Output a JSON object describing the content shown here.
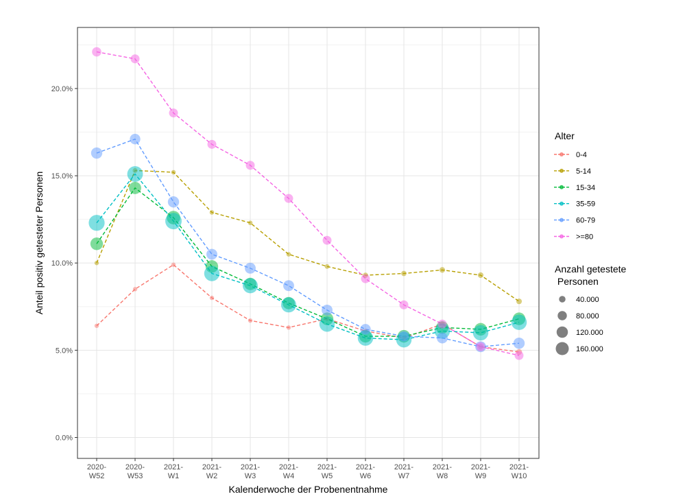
{
  "chart_data": {
    "type": "line",
    "title": "",
    "xlabel": "Kalenderwoche der Probenentnahme",
    "ylabel": "Anteil positiv getesteter Personen",
    "categories": [
      [
        "2020-",
        "W52"
      ],
      [
        "2020-",
        "W53"
      ],
      [
        "2021-",
        "W1"
      ],
      [
        "2021-",
        "W2"
      ],
      [
        "2021-",
        "W3"
      ],
      [
        "2021-",
        "W4"
      ],
      [
        "2021-",
        "W5"
      ],
      [
        "2021-",
        "W6"
      ],
      [
        "2021-",
        "W7"
      ],
      [
        "2021-",
        "W8"
      ],
      [
        "2021-",
        "W9"
      ],
      [
        "2021-",
        "W10"
      ]
    ],
    "ylim": [
      -1.2,
      23.5
    ],
    "yticks": [
      0,
      5,
      10,
      15,
      20
    ],
    "ytick_labels": [
      "0.0%",
      "5.0%",
      "10.0%",
      "15.0%",
      "20.0%"
    ],
    "grid": true,
    "legend_color": {
      "title": "Alter",
      "position": "right"
    },
    "legend_size": {
      "title_line1": "Anzahl getestete",
      "title_line2": " Personen",
      "entries": [
        {
          "label": "40.000",
          "value": 40000
        },
        {
          "label": "80.000",
          "value": 80000
        },
        {
          "label": "120.000",
          "value": 120000
        },
        {
          "label": "160.000",
          "value": 160000
        }
      ]
    },
    "series": [
      {
        "name": "0-4",
        "color": "#F8766D",
        "values": [
          6.4,
          8.5,
          9.9,
          8.0,
          6.7,
          6.3,
          6.8,
          6.1,
          5.7,
          6.5,
          5.2,
          4.9
        ],
        "counts": [
          4000,
          6000,
          5000,
          5000,
          5000,
          5000,
          7000,
          9000,
          11000,
          16000,
          18000,
          22000
        ]
      },
      {
        "name": "5-14",
        "color": "#B79F00",
        "values": [
          10.0,
          15.3,
          15.2,
          12.9,
          12.3,
          10.5,
          9.8,
          9.3,
          9.4,
          9.6,
          9.3,
          7.8
        ],
        "counts": [
          10000,
          15000,
          13000,
          13000,
          13000,
          13000,
          14000,
          17000,
          18000,
          20000,
          20000,
          20000
        ]
      },
      {
        "name": "15-34",
        "color": "#00BA38",
        "values": [
          11.1,
          14.3,
          12.6,
          9.8,
          8.8,
          7.7,
          6.8,
          5.8,
          5.8,
          6.3,
          6.2,
          6.8
        ],
        "counts": [
          100000,
          95000,
          115000,
          100000,
          95000,
          95000,
          100000,
          100000,
          100000,
          100000,
          100000,
          100000
        ]
      },
      {
        "name": "35-59",
        "color": "#00BFC4",
        "values": [
          12.3,
          15.1,
          12.4,
          9.4,
          8.7,
          7.6,
          6.5,
          5.7,
          5.6,
          6.1,
          6.0,
          6.6
        ],
        "counts": [
          160000,
          155000,
          170000,
          150000,
          145000,
          145000,
          150000,
          150000,
          150000,
          150000,
          150000,
          150000
        ]
      },
      {
        "name": "60-79",
        "color": "#619CFF",
        "values": [
          16.3,
          17.1,
          13.5,
          10.5,
          9.7,
          8.7,
          7.3,
          6.2,
          5.8,
          5.7,
          5.2,
          5.4
        ],
        "counts": [
          80000,
          70000,
          80000,
          75000,
          75000,
          75000,
          75000,
          70000,
          70000,
          75000,
          75000,
          80000
        ]
      },
      {
        "name": ">=80",
        "color": "#F564E3",
        "values": [
          22.1,
          21.7,
          18.6,
          16.8,
          15.6,
          13.7,
          11.3,
          9.1,
          7.6,
          6.5,
          5.2,
          4.7
        ],
        "counts": [
          55000,
          50000,
          50000,
          50000,
          50000,
          50000,
          50000,
          50000,
          50000,
          50000,
          50000,
          50000
        ]
      }
    ]
  }
}
